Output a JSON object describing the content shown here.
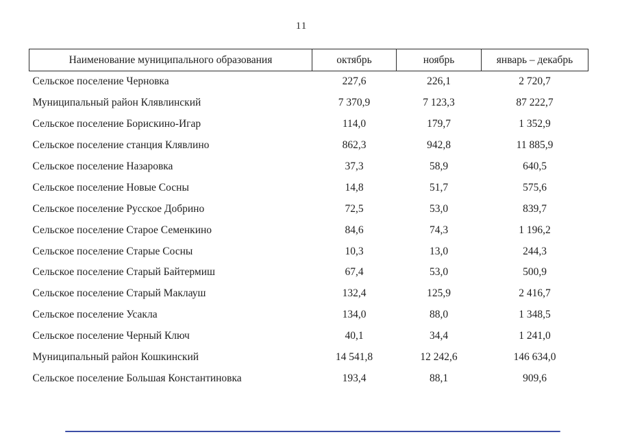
{
  "page": {
    "number": "11"
  },
  "table": {
    "headers": [
      "Наименование муниципального образования",
      "октябрь",
      "ноябрь",
      "январь – декабрь"
    ],
    "rows": [
      [
        "Сельское поселение Черновка",
        "227,6",
        "226,1",
        "2 720,7"
      ],
      [
        "Муниципальный район Клявлинский",
        "7 370,9",
        "7 123,3",
        "87 222,7"
      ],
      [
        "Сельское поселение Борискино-Игар",
        "114,0",
        "179,7",
        "1 352,9"
      ],
      [
        "Сельское поселение станция Клявлино",
        "862,3",
        "942,8",
        "11 885,9"
      ],
      [
        "Сельское поселение Назаровка",
        "37,3",
        "58,9",
        "640,5"
      ],
      [
        "Сельское поселение Новые Сосны",
        "14,8",
        "51,7",
        "575,6"
      ],
      [
        "Сельское поселение Русское Добрино",
        "72,5",
        "53,0",
        "839,7"
      ],
      [
        "Сельское поселение Старое Семенкино",
        "84,6",
        "74,3",
        "1 196,2"
      ],
      [
        "Сельское поселение Старые Сосны",
        "10,3",
        "13,0",
        "244,3"
      ],
      [
        "Сельское поселение Старый Байтермиш",
        "67,4",
        "53,0",
        "500,9"
      ],
      [
        "Сельское поселение Старый Маклауш",
        "132,4",
        "125,9",
        "2 416,7"
      ],
      [
        "Сельское поселение Усакла",
        "134,0",
        "88,0",
        "1 348,5"
      ],
      [
        "Сельское поселение Черный Ключ",
        "40,1",
        "34,4",
        "1 241,0"
      ],
      [
        "Муниципальный район Кошкинский",
        "14 541,8",
        "12 242,6",
        "146 634,0"
      ],
      [
        "Сельское поселение Большая Константиновка",
        "193,4",
        "88,1",
        "909,6"
      ]
    ]
  },
  "decor": {
    "bottom_line_color": "#3c4ea6"
  }
}
